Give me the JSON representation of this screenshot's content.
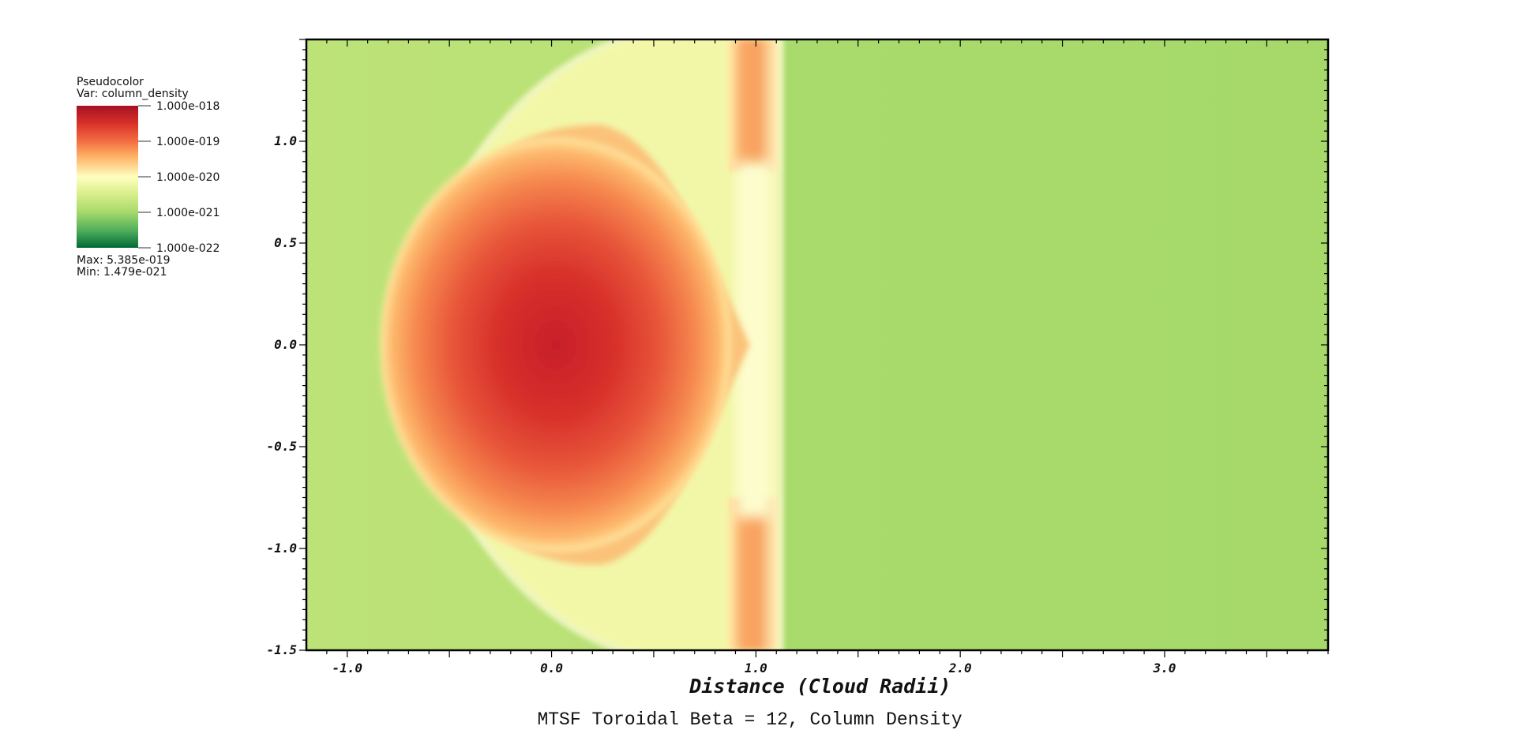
{
  "chart_data": {
    "type": "heatmap",
    "title": "MTSF Toroidal Beta = 12, Column Density",
    "xlabel": "Distance (Cloud Radii)",
    "ylabel": "",
    "xlim": [
      -1.2,
      3.8
    ],
    "ylim": [
      -1.5,
      1.5
    ],
    "x_ticks": [
      {
        "value": -1.0,
        "label": "-1.0"
      },
      {
        "value": 0.0,
        "label": "0.0"
      },
      {
        "value": 1.0,
        "label": "1.0"
      },
      {
        "value": 2.0,
        "label": "2.0"
      },
      {
        "value": 3.0,
        "label": "3.0"
      }
    ],
    "y_ticks": [
      {
        "value": 1.0,
        "label": "1.0"
      },
      {
        "value": 0.5,
        "label": "0.5"
      },
      {
        "value": 0.0,
        "label": "0.0"
      },
      {
        "value": -0.5,
        "label": "-0.5"
      },
      {
        "value": -1.0,
        "label": "-1.0"
      },
      {
        "value": -1.5,
        "label": "-1.5"
      }
    ],
    "legend": {
      "placement": "top-left",
      "plot_type": "Pseudocolor",
      "variable": "Var: column_density",
      "color_ticks": [
        {
          "label": "1.000e-018",
          "color": "#b2182b"
        },
        {
          "label": "1.000e-019",
          "color": "#f4a460"
        },
        {
          "label": "1.000e-020",
          "color": "#ffffbf"
        },
        {
          "label": "1.000e-021",
          "color": "#a6d96a"
        },
        {
          "label": "1.000e-022",
          "color": "#1a7837"
        }
      ],
      "max_text": "Max:  5.385e-019",
      "min_text": "Min:  1.479e-021"
    },
    "colormap": [
      "#a50f26",
      "#d73027",
      "#f46d43",
      "#fdae61",
      "#fee08b",
      "#ffffbf",
      "#d9ef8b",
      "#a6d96a",
      "#66bd63",
      "#1a9850",
      "#006837"
    ],
    "field": {
      "background_left_color": "#bde378",
      "background_right_color": "#a7da6b",
      "cloud_center": [
        0.0,
        0.0
      ],
      "cloud_peak_color": "#c8202b"
    }
  }
}
